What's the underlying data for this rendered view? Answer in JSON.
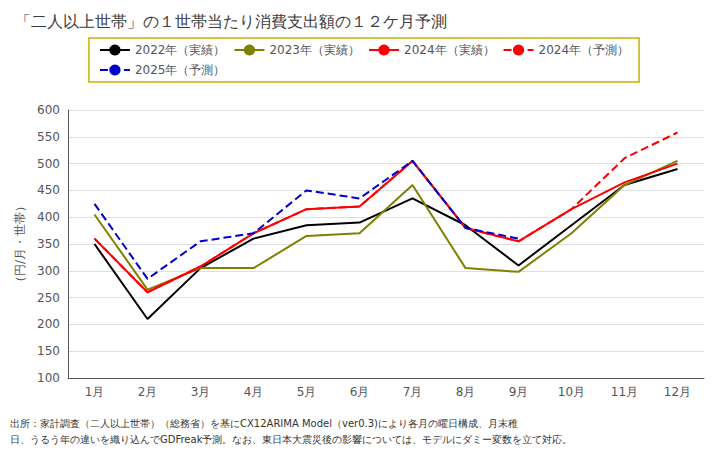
{
  "chart_data": {
    "type": "line",
    "title": "「二人以上世帯」の１世帯当たり消費支出額の１２ケ月予測",
    "y_label": "（円/月・世帯）",
    "categories": [
      "1月",
      "2月",
      "3月",
      "4月",
      "5月",
      "6月",
      "7月",
      "8月",
      "9月",
      "10月",
      "11月",
      "12月"
    ],
    "series": [
      {
        "name": "2022年（実績）",
        "color": "#000000",
        "line_style": "solid",
        "values": [
          350,
          210,
          305,
          360,
          385,
          390,
          435,
          385,
          310,
          385,
          460,
          490
        ]
      },
      {
        "name": "2023年（実績）",
        "color": "#808000",
        "line_style": "solid",
        "values": [
          405,
          265,
          305,
          305,
          365,
          370,
          460,
          305,
          298,
          370,
          460,
          505
        ]
      },
      {
        "name": "2024年（実績）",
        "color": "#ff0000",
        "line_style": "solid",
        "values": [
          360,
          260,
          308,
          370,
          415,
          420,
          505,
          380,
          355,
          415,
          465,
          500
        ]
      },
      {
        "name": "2024年（予測）",
        "color": "#ff0000",
        "line_style": "dashed",
        "values": [
          360,
          260,
          308,
          370,
          415,
          420,
          505,
          380,
          355,
          415,
          510,
          558
        ]
      },
      {
        "name": "2025年（予測）",
        "color": "#0000cc",
        "line_style": "dashed",
        "values": [
          425,
          285,
          355,
          370,
          450,
          435,
          505,
          380,
          360,
          null,
          null,
          null
        ]
      }
    ],
    "ylim": [
      100,
      600
    ],
    "yticks": [
      100,
      150,
      200,
      250,
      300,
      350,
      400,
      450,
      500,
      550,
      600
    ],
    "grid": true,
    "legend": "top",
    "annotations": [
      "出所：家計調査（二人以上世帯）（総務省）を基にCX12ARIMA Model（ver0.3)により各月の曜日構成、月末稚",
      "日、うるう年の違いを織り込んでGDFreak予測。なお、東日本大震災後の影響については、モデルにダミー変数を立て対応。"
    ]
  }
}
